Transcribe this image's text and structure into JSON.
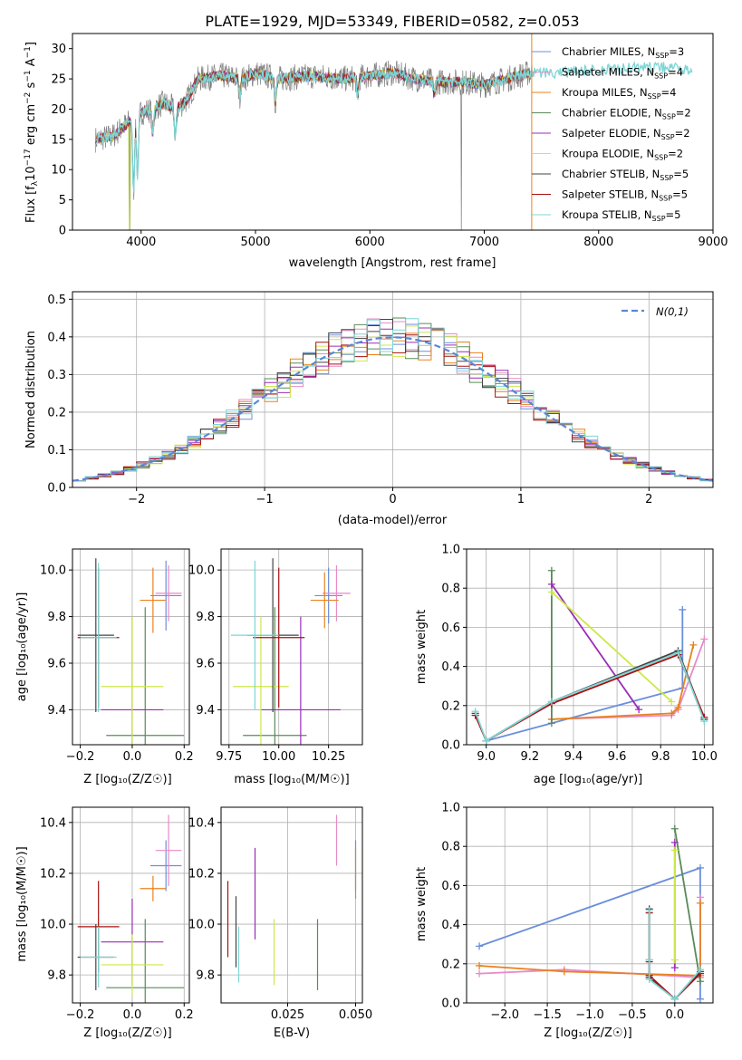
{
  "colors": {
    "Chabrier MILES": "#6a8fdb",
    "Salpeter MILES": "#e88ac8",
    "Kroupa MILES": "#e8821e",
    "Chabrier ELODIE": "#5a8a5a",
    "Salpeter ELODIE": "#9a2cb8",
    "Kroupa ELODIE": "#cde84a",
    "Chabrier STELIB": "#444444",
    "Salpeter STELIB": "#a81010",
    "Kroupa STELIB": "#7dd6d6",
    "gauss": "#5b86d6",
    "grid": "#b0b0b0"
  },
  "chart_data": [
    {
      "type": "line",
      "title": "PLATE=1929, MJD=53349, FIBERID=0582, z=0.053",
      "xlabel": "wavelength [Angstrom, rest frame]",
      "ylabel_parts": [
        "Flux [f",
        "λ",
        "10",
        "−17",
        " erg cm",
        "−2",
        " s",
        "−1",
        " A",
        "−1",
        "]"
      ],
      "xlim": [
        3400,
        9000
      ],
      "ylim": [
        0,
        32.5
      ],
      "xticks": [
        "4000",
        "5000",
        "6000",
        "7000",
        "8000",
        "9000"
      ],
      "yticks": [
        "0",
        "5",
        "10",
        "15",
        "20",
        "25",
        "30"
      ],
      "legend": [
        {
          "name": "Chabrier MILES",
          "nssp": "3"
        },
        {
          "name": "Salpeter MILES",
          "nssp": "4"
        },
        {
          "name": "Kroupa MILES",
          "nssp": "4"
        },
        {
          "name": "Chabrier ELODIE",
          "nssp": "2"
        },
        {
          "name": "Salpeter ELODIE",
          "nssp": "2"
        },
        {
          "name": "Kroupa ELODIE",
          "nssp": "2"
        },
        {
          "name": "Chabrier STELIB",
          "nssp": "5"
        },
        {
          "name": "Salpeter STELIB",
          "nssp": "5"
        },
        {
          "name": "Kroupa STELIB",
          "nssp": "5"
        }
      ],
      "continuum": [
        [
          3600,
          15
        ],
        [
          3750,
          15.5
        ],
        [
          3900,
          18
        ],
        [
          4000,
          19.5
        ],
        [
          4100,
          20
        ],
        [
          4200,
          21
        ],
        [
          4300,
          20
        ],
        [
          4400,
          21.5
        ],
        [
          4500,
          25
        ],
        [
          4700,
          25.5
        ],
        [
          4900,
          25
        ],
        [
          5000,
          26
        ],
        [
          5200,
          25
        ],
        [
          5500,
          25.5
        ],
        [
          5800,
          25
        ],
        [
          6000,
          25.5
        ],
        [
          6200,
          26
        ],
        [
          6400,
          25
        ],
        [
          6600,
          24.5
        ],
        [
          6800,
          24.5
        ],
        [
          7000,
          24
        ],
        [
          7200,
          25
        ],
        [
          7400,
          26
        ],
        [
          7600,
          26
        ],
        [
          8000,
          26.5
        ],
        [
          8500,
          27
        ],
        [
          8800,
          26.5
        ]
      ]
    },
    {
      "type": "line",
      "xlabel": "(data-model)/error",
      "ylabel": "Normed distribution",
      "xlim": [
        -2.5,
        2.5
      ],
      "ylim": [
        0,
        0.52
      ],
      "xticks": [
        "−2",
        "−1",
        "0",
        "1",
        "2"
      ],
      "yticks": [
        "0.0",
        "0.1",
        "0.2",
        "0.3",
        "0.4",
        "0.5"
      ],
      "legend": "N(0,1)"
    },
    {
      "type": "scatter",
      "xlabel": "Z [log₁₀(Z/Z☉)]",
      "ylabel": "age  [log₁₀(age/yr)]",
      "xlim": [
        -0.23,
        0.22
      ],
      "ylim": [
        9.25,
        10.09
      ],
      "xticks": [
        "−0.2",
        "0.0",
        "0.2"
      ],
      "yticks": [
        "9.4",
        "9.6",
        "9.8",
        "10.0"
      ],
      "points": [
        {
          "s": "Chabrier MILES",
          "x": 0.13,
          "y": 9.89,
          "ex": 0.06,
          "ey": 0.15
        },
        {
          "s": "Salpeter MILES",
          "x": 0.14,
          "y": 9.9,
          "ex": 0.05,
          "ey": 0.12
        },
        {
          "s": "Kroupa MILES",
          "x": 0.08,
          "y": 9.87,
          "ex": 0.05,
          "ey": 0.14
        },
        {
          "s": "Chabrier ELODIE",
          "x": 0.05,
          "y": 9.29,
          "ex": 0.15,
          "ey": 0.55
        },
        {
          "s": "Salpeter ELODIE",
          "x": 0.0,
          "y": 9.4,
          "ex": 0.12,
          "ey": 0.4
        },
        {
          "s": "Kroupa ELODIE",
          "x": 0.0,
          "y": 9.5,
          "ex": 0.12,
          "ey": 0.3
        },
        {
          "s": "Chabrier STELIB",
          "x": -0.14,
          "y": 9.72,
          "ex": 0.07,
          "ey": 0.33
        },
        {
          "s": "Salpeter STELIB",
          "x": -0.13,
          "y": 9.71,
          "ex": 0.08,
          "ey": 0.3
        },
        {
          "s": "Kroupa STELIB",
          "x": -0.13,
          "y": 9.71,
          "ex": 0.07,
          "ey": 0.32
        }
      ]
    },
    {
      "type": "scatter",
      "xlabel": "mass [log₁₀(M/M☉)]",
      "ylabel": "",
      "xlim": [
        9.71,
        10.42
      ],
      "ylim": [
        9.25,
        10.09
      ],
      "xticks": [
        "9.75",
        "10.00",
        "10.25"
      ],
      "yticks": [
        "9.4",
        "9.6",
        "9.8",
        "10.0"
      ],
      "points": [
        {
          "s": "Chabrier MILES",
          "x": 10.25,
          "y": 9.89,
          "ex": 0.07,
          "ey": 0.12
        },
        {
          "s": "Salpeter MILES",
          "x": 10.29,
          "y": 9.9,
          "ex": 0.07,
          "ey": 0.12
        },
        {
          "s": "Kroupa MILES",
          "x": 10.23,
          "y": 9.87,
          "ex": 0.07,
          "ey": 0.12
        },
        {
          "s": "Chabrier ELODIE",
          "x": 9.98,
          "y": 9.29,
          "ex": 0.16,
          "ey": 0.55
        },
        {
          "s": "Salpeter ELODIE",
          "x": 10.11,
          "y": 9.4,
          "ex": 0.2,
          "ey": 0.4
        },
        {
          "s": "Kroupa ELODIE",
          "x": 9.91,
          "y": 9.5,
          "ex": 0.14,
          "ey": 0.3
        },
        {
          "s": "Chabrier STELIB",
          "x": 9.97,
          "y": 9.72,
          "ex": 0.13,
          "ey": 0.33
        },
        {
          "s": "Salpeter STELIB",
          "x": 10.0,
          "y": 9.71,
          "ex": 0.13,
          "ey": 0.3
        },
        {
          "s": "Kroupa STELIB",
          "x": 9.88,
          "y": 9.72,
          "ex": 0.12,
          "ey": 0.32
        }
      ]
    },
    {
      "type": "line",
      "xlabel": "age  [log₁₀(age/yr)]",
      "ylabel": "mass weight",
      "xlim": [
        8.91,
        10.04
      ],
      "ylim": [
        0,
        1
      ],
      "xticks": [
        "9.0",
        "9.2",
        "9.4",
        "9.6",
        "9.8",
        "10.0"
      ],
      "yticks": [
        "0.0",
        "0.2",
        "0.4",
        "0.6",
        "0.8",
        "1.0"
      ],
      "series": [
        {
          "s": "Chabrier MILES",
          "x": [
            9.0,
            9.9,
            9.9
          ],
          "y": [
            0.02,
            0.29,
            0.69
          ]
        },
        {
          "s": "Salpeter MILES",
          "x": [
            9.3,
            9.85,
            9.88,
            10.0
          ],
          "y": [
            0.13,
            0.15,
            0.18,
            0.54
          ]
        },
        {
          "s": "Kroupa MILES",
          "x": [
            9.3,
            9.85,
            9.88,
            9.95
          ],
          "y": [
            0.13,
            0.16,
            0.19,
            0.51
          ]
        },
        {
          "s": "Chabrier ELODIE",
          "x": [
            9.3,
            9.3
          ],
          "y": [
            0.11,
            0.89
          ]
        },
        {
          "s": "Salpeter ELODIE",
          "x": [
            9.3,
            9.7
          ],
          "y": [
            0.82,
            0.18
          ]
        },
        {
          "s": "Kroupa ELODIE",
          "x": [
            9.3,
            9.85
          ],
          "y": [
            0.78,
            0.22
          ]
        },
        {
          "s": "Chabrier STELIB",
          "x": [
            8.95,
            9.0,
            9.3,
            9.88,
            10.0
          ],
          "y": [
            0.16,
            0.02,
            0.22,
            0.48,
            0.13
          ]
        },
        {
          "s": "Salpeter STELIB",
          "x": [
            8.95,
            9.0,
            9.3,
            9.88,
            10.0
          ],
          "y": [
            0.15,
            0.02,
            0.21,
            0.46,
            0.14
          ]
        },
        {
          "s": "Kroupa STELIB",
          "x": [
            8.95,
            9.0,
            9.3,
            9.88,
            10.0
          ],
          "y": [
            0.17,
            0.02,
            0.22,
            0.47,
            0.12
          ]
        }
      ]
    },
    {
      "type": "scatter",
      "xlabel": "Z [log₁₀(Z/Z☉)]",
      "ylabel": "mass [log₁₀(M/M☉)]",
      "xlim": [
        -0.23,
        0.22
      ],
      "ylim": [
        9.69,
        10.46
      ],
      "xticks": [
        "−0.2",
        "0.0",
        "0.2"
      ],
      "yticks": [
        "9.8",
        "10.0",
        "10.2",
        "10.4"
      ],
      "points": [
        {
          "s": "Chabrier MILES",
          "x": 0.13,
          "y": 10.23,
          "ex": 0.06,
          "ey": 0.1
        },
        {
          "s": "Salpeter MILES",
          "x": 0.14,
          "y": 10.29,
          "ex": 0.05,
          "ey": 0.14
        },
        {
          "s": "Kroupa MILES",
          "x": 0.08,
          "y": 10.14,
          "ex": 0.05,
          "ey": 0.05
        },
        {
          "s": "Chabrier ELODIE",
          "x": 0.05,
          "y": 9.75,
          "ex": 0.15,
          "ey": 0.27
        },
        {
          "s": "Salpeter ELODIE",
          "x": 0.0,
          "y": 9.93,
          "ex": 0.12,
          "ey": 0.17
        },
        {
          "s": "Kroupa ELODIE",
          "x": 0.0,
          "y": 9.84,
          "ex": 0.12,
          "ey": 0.12
        },
        {
          "s": "Chabrier STELIB",
          "x": -0.14,
          "y": 9.87,
          "ex": 0.07,
          "ey": 0.13
        },
        {
          "s": "Salpeter STELIB",
          "x": -0.13,
          "y": 9.99,
          "ex": 0.08,
          "ey": 0.18
        },
        {
          "s": "Kroupa STELIB",
          "x": -0.13,
          "y": 9.87,
          "ex": 0.07,
          "ey": 0.12
        }
      ]
    },
    {
      "type": "scatter",
      "xlabel": "E(B-V)",
      "ylabel": "",
      "xlim": [
        0.0005,
        0.0525
      ],
      "ylim": [
        9.69,
        10.46
      ],
      "xticks": [
        "0.025",
        "0.050"
      ],
      "yticks": [
        "9.8",
        "10.0",
        "10.2",
        "10.4"
      ],
      "points": [
        {
          "s": "Chabrier MILES",
          "x": 0.05,
          "y": 10.23,
          "ey": 0.1
        },
        {
          "s": "Salpeter MILES",
          "x": 0.043,
          "y": 10.33,
          "ey": 0.1
        },
        {
          "s": "Kroupa MILES",
          "x": 0.05,
          "y": 10.2,
          "ey": 0.1
        },
        {
          "s": "Chabrier ELODIE",
          "x": 0.036,
          "y": 9.88,
          "ey": 0.14
        },
        {
          "s": "Salpeter ELODIE",
          "x": 0.013,
          "y": 10.12,
          "ey": 0.18
        },
        {
          "s": "Kroupa ELODIE",
          "x": 0.02,
          "y": 9.89,
          "ey": 0.13
        },
        {
          "s": "Chabrier STELIB",
          "x": 0.006,
          "y": 9.97,
          "ey": 0.14
        },
        {
          "s": "Salpeter STELIB",
          "x": 0.003,
          "y": 10.02,
          "ey": 0.15
        },
        {
          "s": "Kroupa STELIB",
          "x": 0.007,
          "y": 9.88,
          "ey": 0.11
        }
      ]
    },
    {
      "type": "line",
      "xlabel": "Z [log₁₀(Z/Z☉)]",
      "ylabel": "mass weight",
      "xlim": [
        -2.45,
        0.45
      ],
      "ylim": [
        0,
        1
      ],
      "xticks": [
        "−2.0",
        "−1.5",
        "−1.0",
        "−0.5",
        "0.0"
      ],
      "yticks": [
        "0.0",
        "0.2",
        "0.4",
        "0.6",
        "0.8",
        "1.0"
      ],
      "series": [
        {
          "s": "Chabrier MILES",
          "x": [
            -2.3,
            0.3,
            0.3
          ],
          "y": [
            0.29,
            0.69,
            0.02
          ]
        },
        {
          "s": "Salpeter MILES",
          "x": [
            -2.3,
            -1.3,
            0.3,
            0.3
          ],
          "y": [
            0.15,
            0.17,
            0.13,
            0.54
          ]
        },
        {
          "s": "Kroupa MILES",
          "x": [
            -2.3,
            -1.3,
            0.3,
            0.3
          ],
          "y": [
            0.19,
            0.16,
            0.14,
            0.51
          ]
        },
        {
          "s": "Chabrier ELODIE",
          "x": [
            0.0,
            0.3
          ],
          "y": [
            0.89,
            0.11
          ]
        },
        {
          "s": "Salpeter ELODIE",
          "x": [
            0.0,
            0.0
          ],
          "y": [
            0.82,
            0.18
          ]
        },
        {
          "s": "Kroupa ELODIE",
          "x": [
            0.0,
            0.0
          ],
          "y": [
            0.78,
            0.22
          ]
        },
        {
          "s": "Chabrier STELIB",
          "x": [
            -0.3,
            -0.3,
            -0.3,
            0.0,
            0.3
          ],
          "y": [
            0.48,
            0.22,
            0.13,
            0.02,
            0.16
          ]
        },
        {
          "s": "Salpeter STELIB",
          "x": [
            -0.3,
            -0.3,
            -0.3,
            0.0,
            0.3
          ],
          "y": [
            0.46,
            0.21,
            0.14,
            0.02,
            0.15
          ]
        },
        {
          "s": "Kroupa STELIB",
          "x": [
            -0.3,
            -0.3,
            -0.3,
            0.0,
            0.3
          ],
          "y": [
            0.47,
            0.22,
            0.12,
            0.02,
            0.17
          ]
        }
      ]
    }
  ]
}
